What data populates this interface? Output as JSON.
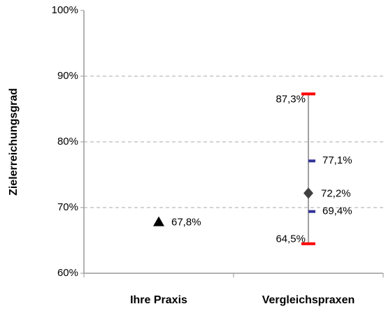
{
  "chart_data": {
    "type": "range",
    "y_label": "Zielerreichungsgrad",
    "categories": [
      "Ihre Praxis",
      "Vergleichspraxen"
    ],
    "ylim": [
      60,
      100
    ],
    "yticks": [
      {
        "value": 60,
        "label": "60%"
      },
      {
        "value": 70,
        "label": "70%"
      },
      {
        "value": 80,
        "label": "80%"
      },
      {
        "value": 90,
        "label": "90%"
      },
      {
        "value": 100,
        "label": "100%"
      }
    ],
    "grid": true,
    "center": {
      "values": [
        67.8,
        72.2
      ],
      "value_labels": [
        "67,8%",
        "72,2%"
      ],
      "markers": [
        "triangle",
        "diamond"
      ],
      "colors": [
        "#000000",
        "#404040"
      ]
    },
    "low": {
      "values": [
        null,
        64.5
      ],
      "value_labels": [
        null,
        "64,5%"
      ],
      "color": "#ff0000"
    },
    "high": {
      "values": [
        null,
        87.3
      ],
      "value_labels": [
        null,
        "87,3%"
      ],
      "color": "#ff0000"
    },
    "q1": {
      "values": [
        null,
        69.4
      ],
      "value_labels": [
        null,
        "69,4%"
      ],
      "color": "#333399"
    },
    "q3": {
      "values": [
        null,
        77.1
      ],
      "value_labels": [
        null,
        "77,1%"
      ],
      "color": "#333399"
    }
  }
}
